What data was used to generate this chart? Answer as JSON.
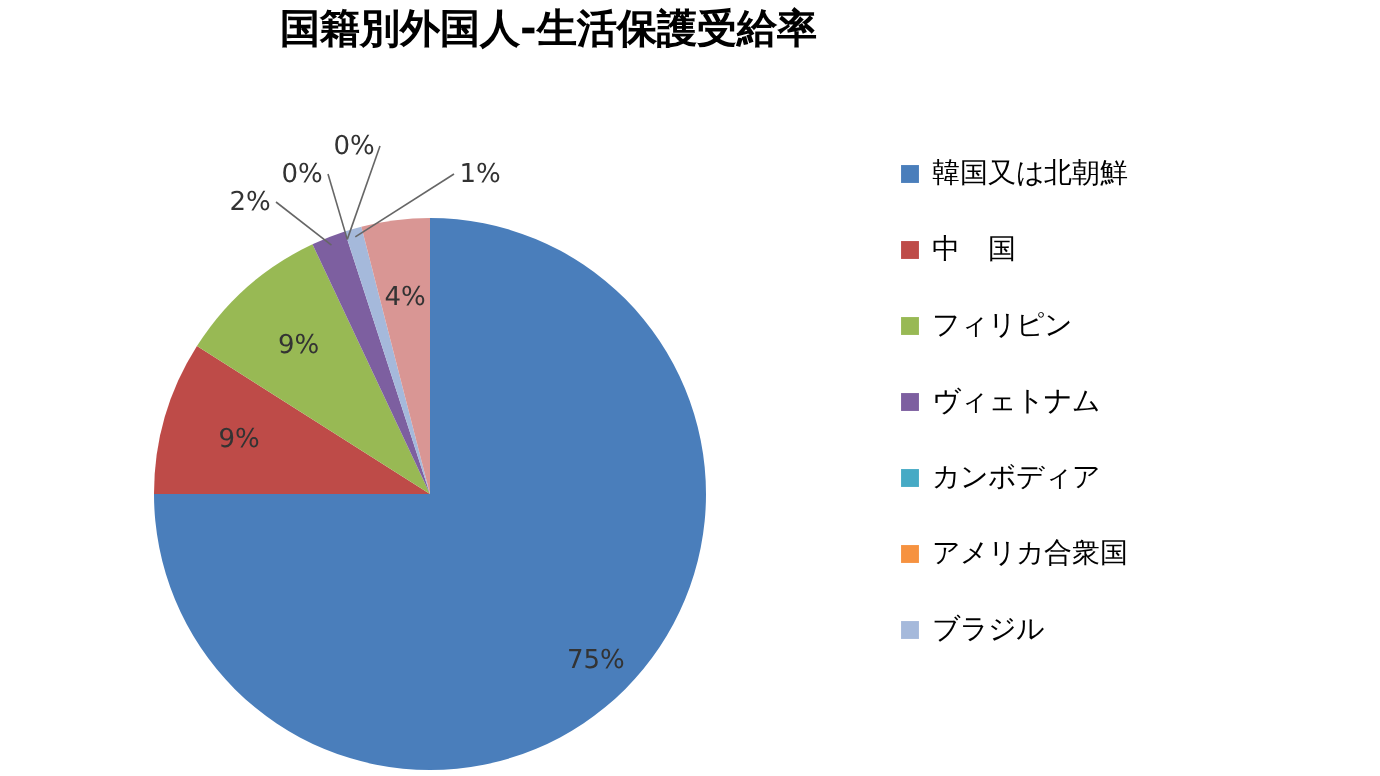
{
  "chart_data": {
    "type": "pie",
    "title": "国籍別外国人-生活保護受給率",
    "categories": [
      "韓国又は北朝鮮",
      "中　国",
      "フィリピン",
      "ヴィェトナム",
      "カンボディア",
      "アメリカ合衆国",
      "ブラジル",
      null
    ],
    "values": [
      75,
      9,
      9,
      2,
      0,
      0,
      1,
      4
    ],
    "value_labels": [
      "75%",
      "9%",
      "9%",
      "2%",
      "0%",
      "0%",
      "1%",
      "4%"
    ],
    "colors": [
      "#4a7ebb",
      "#be4b48",
      "#98b954",
      "#7d5fa0",
      "#46aac5",
      "#f69240",
      "#a5b9db",
      "#d99694"
    ],
    "legend": "right"
  }
}
